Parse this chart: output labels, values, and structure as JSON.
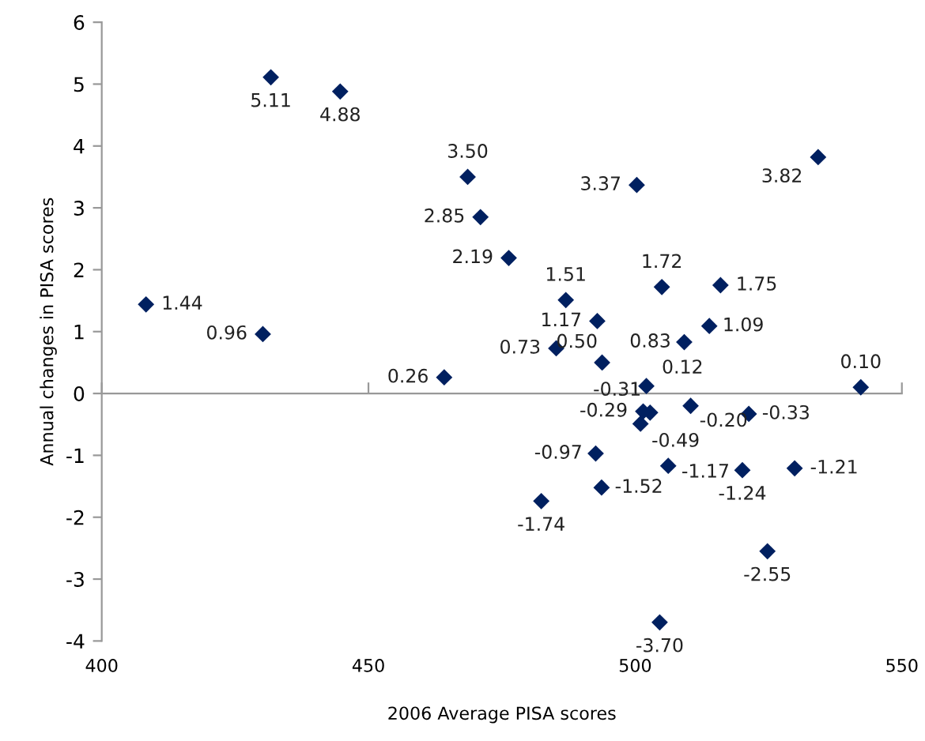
{
  "chart_data": {
    "type": "scatter",
    "xlabel": "2006 Average PISA scores",
    "ylabel": "Annual changes in PISA scores",
    "x": [
      408.3,
      430.2,
      431.7,
      444.7,
      468.6,
      471.0,
      476.3,
      464.2,
      487.0,
      492.9,
      485.2,
      493.8,
      500.3,
      534.3,
      505.0,
      516.0,
      509.2,
      513.9,
      502.1,
      542.3,
      502.8,
      501.5,
      501.0,
      510.4,
      521.3,
      506.2,
      520.1,
      529.9,
      492.6,
      493.7,
      482.4,
      524.8,
      504.6
    ],
    "series": [
      {
        "color": "#002060",
        "values": [
          1.44,
          0.96,
          5.11,
          4.88,
          3.5,
          2.85,
          2.19,
          0.26,
          1.51,
          1.17,
          0.73,
          0.5,
          3.37,
          3.82,
          1.72,
          1.75,
          0.83,
          1.09,
          0.12,
          0.1,
          -0.31,
          -0.29,
          -0.49,
          -0.2,
          -0.33,
          -1.17,
          -1.24,
          -1.21,
          -0.97,
          -1.52,
          -1.74,
          -2.55,
          -3.7
        ],
        "value_labels": [
          "1.44",
          "0.96",
          "5.11",
          "4.88",
          "3.50",
          "2.85",
          "2.19",
          "0.26",
          "1.51",
          "1.17",
          "0.73",
          "0.50",
          "3.37",
          "3.82",
          "1.72",
          "1.75",
          "0.83",
          "1.09",
          "0.12",
          "0.10",
          "-0.31",
          "-0.29",
          "-0.49",
          "-0.20",
          "-0.33",
          "-1.17",
          "-1.24",
          "-1.21",
          "-0.97",
          "-1.52",
          "-1.74",
          "-2.55",
          "-3.70"
        ]
      }
    ],
    "marker": "diamond",
    "xlim": [
      400,
      550
    ],
    "xticks": [
      400,
      450,
      500,
      550
    ],
    "ylim": [
      -4,
      6
    ],
    "yticks": [
      -4,
      -3,
      -2,
      -1,
      0,
      1,
      2,
      3,
      4,
      5,
      6
    ]
  }
}
